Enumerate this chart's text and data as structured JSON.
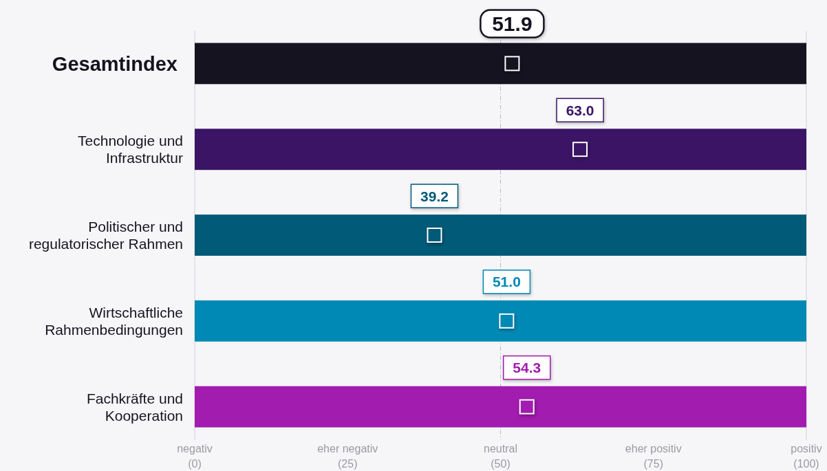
{
  "chart_data": {
    "type": "bar",
    "orientation": "horizontal",
    "categories": [
      "Gesamtindex",
      "Technologie und Infrastruktur",
      "Politischer und regulatorischer Rahmen",
      "Wirtschaftliche Rahmenbedingungen",
      "Fachkräfte und Kooperation"
    ],
    "series": [
      {
        "type": "bar",
        "values": [
          100,
          100,
          100,
          100,
          100
        ],
        "colors": [
          "#15131f",
          "#3b1466",
          "#005a78",
          "#0089b5",
          "#a21caf"
        ]
      },
      {
        "type": "scatter",
        "marker": "square",
        "x": [
          "Gesamtindex",
          "Technologie und Infrastruktur",
          "Politischer und regulatorischer Rahmen",
          "Wirtschaftliche Rahmenbedingungen",
          "Fachkräfte und Kooperation"
        ],
        "values": [
          51.9,
          63.0,
          39.2,
          51.0,
          54.3
        ],
        "colors": [
          "#15131f",
          "#3b1466",
          "#005a78",
          "#0089b5",
          "#a21caf"
        ],
        "value_labels": [
          "51.9",
          "63.0",
          "39.2",
          "51.0",
          "54.3"
        ]
      }
    ],
    "xlim": [
      0,
      100
    ],
    "xticks": [
      {
        "value": 0,
        "label": "negativ (0)"
      },
      {
        "value": 25,
        "label": "eher negativ (25)"
      },
      {
        "value": 50,
        "label": "neutral (50)"
      },
      {
        "value": 75,
        "label": "eher positiv (75)"
      },
      {
        "value": 100,
        "label": "positiv (100)"
      }
    ],
    "ref_lines": [
      {
        "axis": "x",
        "value": 50,
        "line_style": "dashed",
        "color": "#b8b8c0"
      }
    ]
  }
}
